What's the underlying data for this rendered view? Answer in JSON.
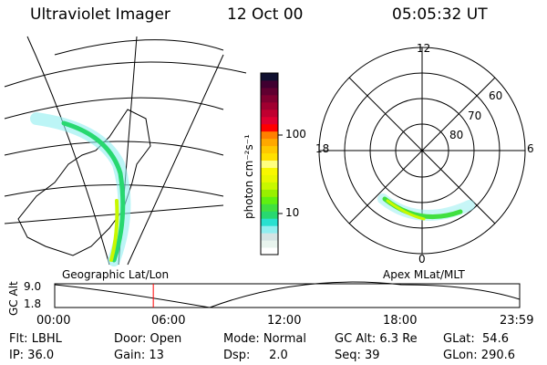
{
  "header": {
    "title": "Ultraviolet Imager",
    "date": "12 Oct 00",
    "time": "05:05:32 UT"
  },
  "colorbar": {
    "unit_label": "photon cm⁻²s⁻¹",
    "ticks": [
      "100",
      "10"
    ],
    "colors": [
      "#ffffff",
      "#e8f4ee",
      "#d4e4e4",
      "#90eef0",
      "#28e0d0",
      "#28d870",
      "#40e040",
      "#60f010",
      "#98f000",
      "#c8f800",
      "#e8f800",
      "#f8f800",
      "#ffff80",
      "#ffe000",
      "#ffc800",
      "#ffa800",
      "#ff8000",
      "#ff0000",
      "#e00030",
      "#c00030",
      "#a00030",
      "#800030",
      "#600030",
      "#400030",
      "#101030"
    ]
  },
  "polar": {
    "mlt_labels": [
      "12",
      "18",
      "6",
      "0"
    ],
    "mlat_labels": [
      "60",
      "70",
      "80"
    ]
  },
  "timeline": {
    "left_title": "Geographic Lat/Lon",
    "right_title": "Apex MLat/MLT",
    "y_label": "GC Alt",
    "y_ticks": [
      "9.0",
      "1.8"
    ],
    "x_ticks": [
      "00:00",
      "06:00",
      "12:00",
      "18:00",
      "23:59"
    ],
    "current_time_hours": 5.09,
    "marker_color": "#ff0000"
  },
  "info": {
    "row1": [
      "Flt: LBHL",
      "Door: Open",
      "Mode: Normal",
      "GC Alt: 6.3 Re",
      "GLat:  54.6"
    ],
    "row2": [
      "IP: 36.0",
      "Gain: 13",
      "Dsp:     2.0",
      "Seq: 39",
      "GLon: 290.6"
    ]
  }
}
